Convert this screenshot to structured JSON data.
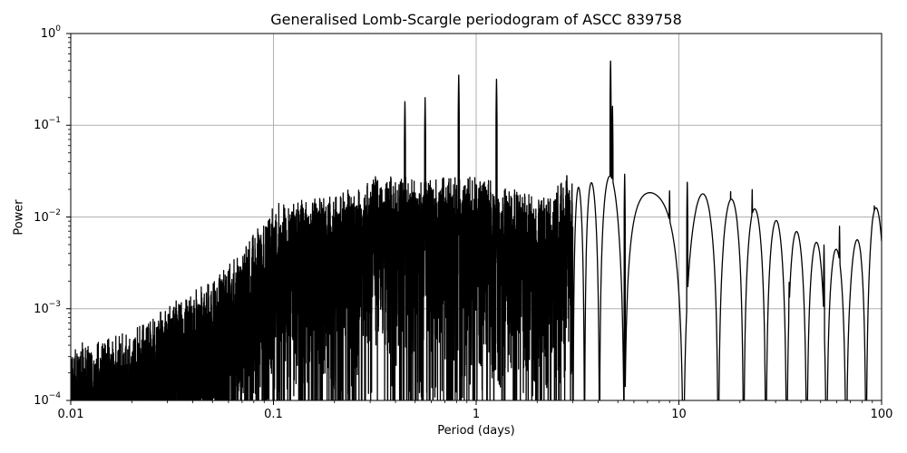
{
  "chart_data": {
    "type": "line",
    "title": "Generalised Lomb-Scargle periodogram of ASCC 839758",
    "xlabel": "Period (days)",
    "ylabel": "Power",
    "xscale": "log",
    "yscale": "log",
    "xlim": [
      0.01,
      100
    ],
    "ylim": [
      0.0001,
      1
    ],
    "grid": true,
    "legend": null,
    "x_ticks": [
      "0.01",
      "0.1",
      "1",
      "10",
      "100"
    ],
    "y_ticks": [
      {
        "base": "10",
        "exp": "0"
      },
      {
        "base": "10",
        "exp": "−1"
      },
      {
        "base": "10",
        "exp": "−2"
      },
      {
        "base": "10",
        "exp": "−3"
      },
      {
        "base": "10",
        "exp": "−4"
      }
    ],
    "line_color": "#000000",
    "grid_color": "#b0b0b0",
    "series": [
      {
        "name": "power",
        "description": "Dense noisy periodogram; envelope rises from ~3e-4 at 0.01 d to ~1e-2 near 0.1-1 d, with sharp peaks, then sparse oscillations toward 100 d.",
        "envelope": [
          {
            "period": 0.01,
            "power": 0.0003
          },
          {
            "period": 0.02,
            "power": 0.0004
          },
          {
            "period": 0.03,
            "power": 0.0008
          },
          {
            "period": 0.05,
            "power": 0.0015
          },
          {
            "period": 0.07,
            "power": 0.003
          },
          {
            "period": 0.1,
            "power": 0.01
          },
          {
            "period": 0.2,
            "power": 0.012
          },
          {
            "period": 0.3,
            "power": 0.02
          },
          {
            "period": 0.5,
            "power": 0.02
          },
          {
            "period": 1.0,
            "power": 0.02
          },
          {
            "period": 2.0,
            "power": 0.012
          },
          {
            "period": 3.0,
            "power": 0.02
          },
          {
            "period": 5.0,
            "power": 0.03
          },
          {
            "period": 10.0,
            "power": 0.02
          },
          {
            "period": 20.0,
            "power": 0.015
          },
          {
            "period": 50.0,
            "power": 0.005
          },
          {
            "period": 70.0,
            "power": 0.004
          },
          {
            "period": 90.0,
            "power": 0.013
          },
          {
            "period": 100.0,
            "power": 0.012
          }
        ],
        "peaks": [
          {
            "period": 0.275,
            "power": 0.008
          },
          {
            "period": 0.35,
            "power": 0.015
          },
          {
            "period": 0.445,
            "power": 0.19
          },
          {
            "period": 0.56,
            "power": 0.2
          },
          {
            "period": 0.82,
            "power": 0.37
          },
          {
            "period": 1.26,
            "power": 0.33
          },
          {
            "period": 2.8,
            "power": 0.03
          },
          {
            "period": 4.6,
            "power": 0.53
          },
          {
            "period": 4.7,
            "power": 0.17
          },
          {
            "period": 5.4,
            "power": 0.03
          },
          {
            "period": 9.0,
            "power": 0.02
          },
          {
            "period": 11.0,
            "power": 0.025
          },
          {
            "period": 18.0,
            "power": 0.02
          },
          {
            "period": 23.0,
            "power": 0.02
          },
          {
            "period": 30.0,
            "power": 0.006
          },
          {
            "period": 35.0,
            "power": 0.002
          },
          {
            "period": 40.0,
            "power": 0.003
          },
          {
            "period": 52.0,
            "power": 0.005
          },
          {
            "period": 62.0,
            "power": 0.008
          },
          {
            "period": 92.0,
            "power": 0.014
          }
        ]
      }
    ]
  }
}
